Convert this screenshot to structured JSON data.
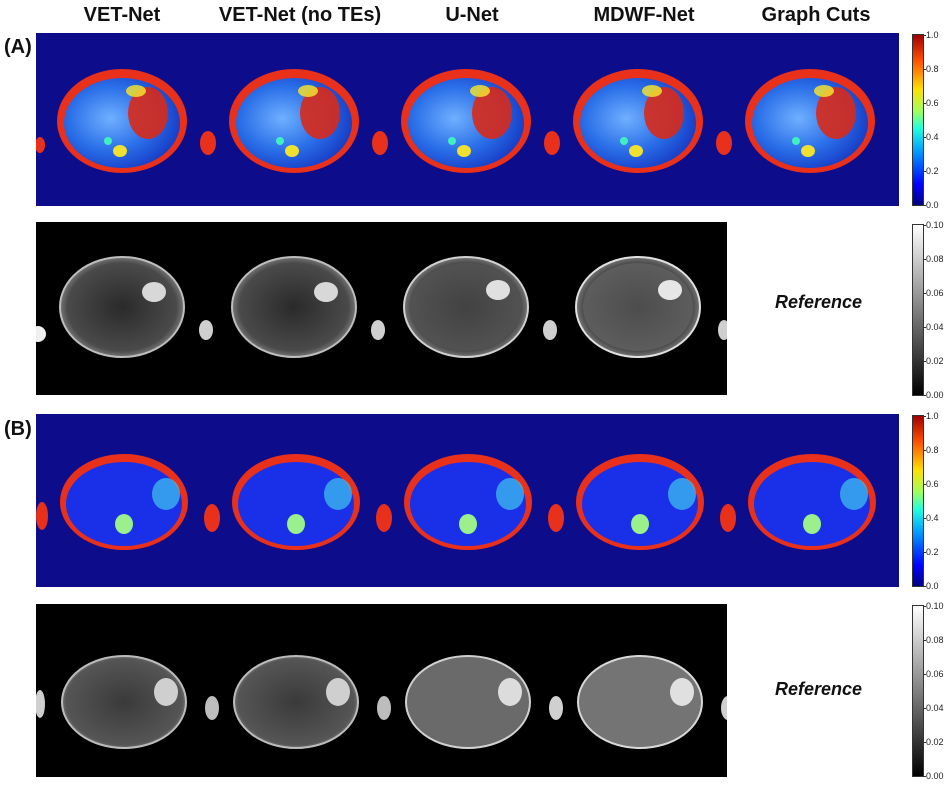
{
  "columns": [
    "VET-Net",
    "VET-Net (no TEs)",
    "U-Net",
    "MDWF-Net",
    "Graph Cuts"
  ],
  "panels": [
    {
      "label": "(A)",
      "reference_label": "Reference"
    },
    {
      "label": "(B)",
      "reference_label": "Reference"
    }
  ],
  "colorbars": {
    "pdff_ticks": [
      "1.0",
      "0.8",
      "0.6",
      "0.4",
      "0.2",
      "0.0"
    ],
    "error_ticks": [
      "0.10",
      "0.08",
      "0.06",
      "0.04",
      "0.02",
      "0.00"
    ],
    "pdff_colormap": "jet",
    "error_colormap": "gray"
  },
  "colors": {
    "background_blue": "#0d0d8c",
    "fat_red": "#e8301a",
    "liver_blue": "#2a6ee8"
  }
}
